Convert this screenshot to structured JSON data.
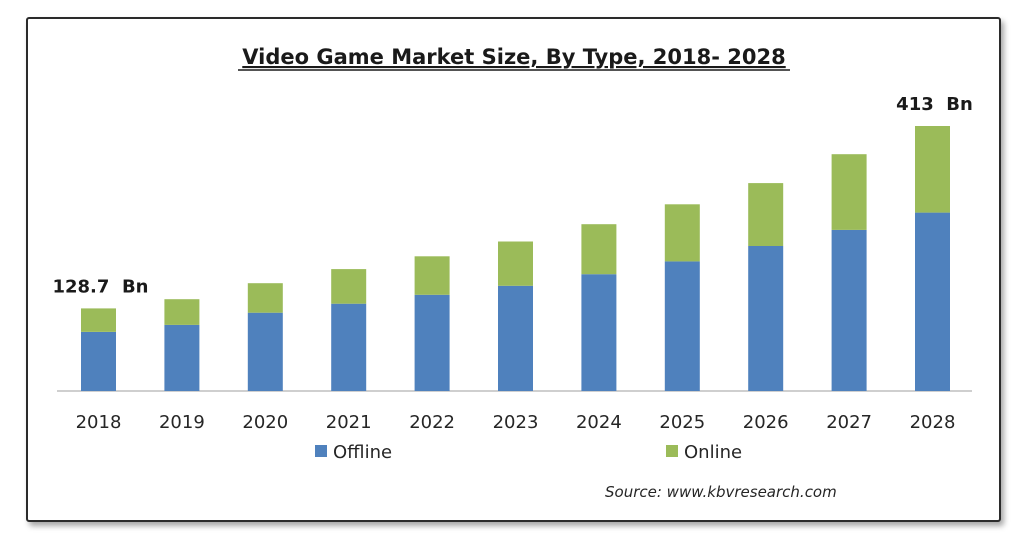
{
  "chart_data": {
    "type": "bar",
    "stacked": true,
    "title": "Video Game Market Size, By Type, 2018- 2028",
    "categories": [
      "2018",
      "2019",
      "2020",
      "2021",
      "2022",
      "2023",
      "2024",
      "2025",
      "2026",
      "2027",
      "2028"
    ],
    "series": [
      {
        "name": "Offline",
        "color": "#4f81bd",
        "values": [
          92,
          103,
          122,
          136,
          150,
          164,
          182,
          202,
          226,
          251,
          278
        ]
      },
      {
        "name": "Online",
        "color": "#9bbb59",
        "values": [
          36.7,
          40,
          46,
          54,
          60,
          69,
          78,
          89,
          98,
          118,
          135
        ]
      }
    ],
    "totals": [
      128.7,
      143,
      168,
      190,
      210,
      233,
      260,
      291,
      324,
      369,
      413
    ],
    "annotations": [
      {
        "category": "2018",
        "text": "128.7  Bn"
      },
      {
        "category": "2028",
        "text": "413  Bn"
      }
    ],
    "source": "Source:  www.kbvresearch.com",
    "ylim": [
      0,
      430
    ],
    "grid": false,
    "legend_position": "bottom"
  }
}
